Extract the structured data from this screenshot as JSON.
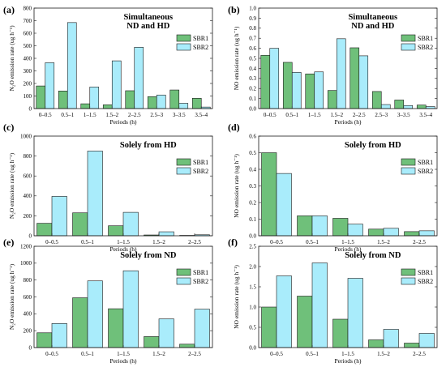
{
  "colors": {
    "sbr1": "#6fc07a",
    "sbr2": "#a9ecfb",
    "edge": "#1a1a1a"
  },
  "chart_data": [
    {
      "letter": "(a)",
      "type": "bar",
      "title": [
        "Simultaneous",
        "ND and HD"
      ],
      "xlabel": "Periods (h)",
      "ylabel": "N₂O emission rate (ug h⁻¹)",
      "ylim": [
        0,
        800
      ],
      "yticks": [
        0,
        100,
        200,
        300,
        400,
        500,
        600,
        700,
        800
      ],
      "ytick_labels": [
        "0",
        "100",
        "200",
        "300",
        "400",
        "500",
        "600",
        "700",
        "800"
      ],
      "categories": [
        "0–0.5",
        "0.5–1",
        "1–1.5",
        "1.5–2",
        "2–2.5",
        "2.5–3",
        "3–3.5",
        "3.5–4"
      ],
      "series": [
        {
          "name": "SBR1",
          "values": [
            180,
            140,
            38,
            30,
            142,
            95,
            148,
            82
          ]
        },
        {
          "name": "SBR2",
          "values": [
            365,
            685,
            172,
            380,
            488,
            108,
            42,
            12
          ]
        }
      ],
      "legend": "right"
    },
    {
      "letter": "(b)",
      "type": "bar",
      "title": [
        "Simultaneous",
        "ND and HD"
      ],
      "xlabel": "Periods (h)",
      "ylabel": "NO emission rate (ug h⁻¹)",
      "ylim": [
        0,
        1.0
      ],
      "yticks": [
        0,
        0.1,
        0.2,
        0.3,
        0.4,
        0.5,
        0.6,
        0.7,
        0.8,
        0.9,
        1.0
      ],
      "ytick_labels": [
        "0.0",
        "0.1",
        "0.2",
        "0.3",
        "0.4",
        "0.5",
        "0.6",
        "0.7",
        "0.8",
        "0.9",
        "1.0"
      ],
      "categories": [
        "0–0.5",
        "0.5–1",
        "1–1.5",
        "1.5–2",
        "2–2.5",
        "2.5–3",
        "3–3.5",
        "3.5–4"
      ],
      "series": [
        {
          "name": "SBR1",
          "values": [
            0.53,
            0.46,
            0.345,
            0.18,
            0.605,
            0.17,
            0.085,
            0.035
          ]
        },
        {
          "name": "SBR2",
          "values": [
            0.6,
            0.36,
            0.365,
            0.695,
            0.525,
            0.04,
            0.03,
            0.02
          ]
        }
      ],
      "legend": "right"
    },
    {
      "letter": "(c)",
      "type": "bar",
      "title": [
        "Solely from HD"
      ],
      "xlabel": "Periods (h)",
      "ylabel": "N₂O emission rate (ug h⁻¹)",
      "ylim": [
        0,
        1000
      ],
      "yticks": [
        0,
        200,
        400,
        600,
        800,
        1000
      ],
      "ytick_labels": [
        "0",
        "200",
        "400",
        "600",
        "800",
        "1000"
      ],
      "categories": [
        "0–0.5",
        "0.5–1",
        "1–1.5",
        "1.5–2",
        "2–2.5"
      ],
      "series": [
        {
          "name": "SBR1",
          "values": [
            125,
            230,
            100,
            8,
            4
          ]
        },
        {
          "name": "SBR2",
          "values": [
            395,
            850,
            235,
            40,
            10
          ]
        }
      ],
      "legend": "right"
    },
    {
      "letter": "(d)",
      "type": "bar",
      "title": [
        "Solely from HD"
      ],
      "xlabel": "Periods (h)",
      "ylabel": "NO emission rate (ug h⁻¹)",
      "ylim": [
        0,
        0.6
      ],
      "yticks": [
        0,
        0.1,
        0.2,
        0.3,
        0.4,
        0.5,
        0.6
      ],
      "ytick_labels": [
        "0.0",
        "0.1",
        "0.2",
        "0.3",
        "0.4",
        "0.5",
        "0.6"
      ],
      "categories": [
        "0–0.5",
        "0.5–1",
        "1–1.5",
        "1.5–2",
        "2–2.5"
      ],
      "series": [
        {
          "name": "SBR1",
          "values": [
            0.5,
            0.12,
            0.105,
            0.04,
            0.025
          ]
        },
        {
          "name": "SBR2",
          "values": [
            0.375,
            0.12,
            0.07,
            0.045,
            0.03
          ]
        }
      ],
      "legend": "right"
    },
    {
      "letter": "(e)",
      "type": "bar",
      "title": [
        "Solely from ND"
      ],
      "xlabel": "Periods (h)",
      "ylabel": "N₂O emission rate (ug h⁻¹)",
      "ylim": [
        0,
        1200
      ],
      "yticks": [
        0,
        200,
        400,
        600,
        800,
        1000,
        1200
      ],
      "ytick_labels": [
        "0",
        "200",
        "400",
        "600",
        "800",
        "1000",
        "1200"
      ],
      "categories": [
        "0–0.5",
        "0.5–1",
        "1–1.5",
        "1.5–2",
        "2–2.5"
      ],
      "series": [
        {
          "name": "SBR1",
          "values": [
            175,
            590,
            460,
            130,
            40
          ]
        },
        {
          "name": "SBR2",
          "values": [
            285,
            790,
            910,
            340,
            455
          ]
        }
      ],
      "legend": "right"
    },
    {
      "letter": "(f)",
      "type": "bar",
      "title": [
        "Solely from ND"
      ],
      "xlabel": "Periods (h)",
      "ylabel": "NO emission rate (ug h⁻¹)",
      "ylim": [
        0,
        2.5
      ],
      "yticks": [
        0,
        0.5,
        1.0,
        1.5,
        2.0,
        2.5
      ],
      "ytick_labels": [
        "0.0",
        "0.5",
        "1.0",
        "1.5",
        "2.0",
        "2.5"
      ],
      "categories": [
        "0–0.5",
        "0.5–1",
        "1–1.5",
        "1.5–2",
        "2–2.5"
      ],
      "series": [
        {
          "name": "SBR1",
          "values": [
            1.0,
            1.27,
            0.7,
            0.19,
            0.11
          ]
        },
        {
          "name": "SBR2",
          "values": [
            1.77,
            2.09,
            1.71,
            0.45,
            0.35
          ]
        }
      ],
      "legend": "right"
    }
  ]
}
